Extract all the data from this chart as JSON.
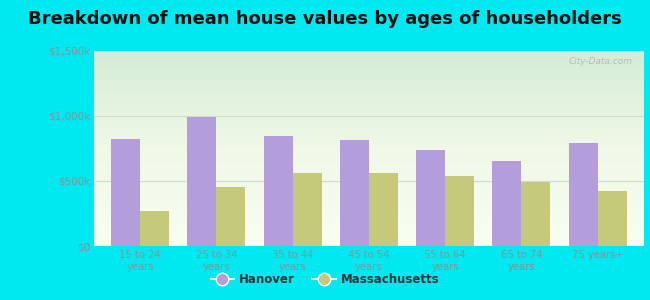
{
  "title": "Breakdown of mean house values by ages of householders",
  "categories": [
    "15 to 24\nyears",
    "25 to 34\nyears",
    "35 to 44\nyears",
    "45 to 54\nyears",
    "55 to 64\nyears",
    "65 to 74\nyears",
    "75 years+"
  ],
  "hanover": [
    820000,
    990000,
    850000,
    815000,
    740000,
    655000,
    790000
  ],
  "massachusetts": [
    270000,
    455000,
    560000,
    560000,
    535000,
    490000,
    420000
  ],
  "hanover_color": "#b39ddb",
  "massachusetts_color": "#c5ca7a",
  "background_outer": "#00e8f0",
  "ylim": [
    0,
    1500000
  ],
  "yticks": [
    0,
    500000,
    1000000,
    1500000
  ],
  "ytick_labels": [
    "$0",
    "$500k",
    "$1,000k",
    "$1,500k"
  ],
  "legend_hanover": "Hanover",
  "legend_massachusetts": "Massachusetts",
  "title_fontsize": 13,
  "bar_width": 0.38,
  "watermark": "City-Data.com",
  "tick_color": "#7a9a9a",
  "grid_color": "#ccddcc"
}
